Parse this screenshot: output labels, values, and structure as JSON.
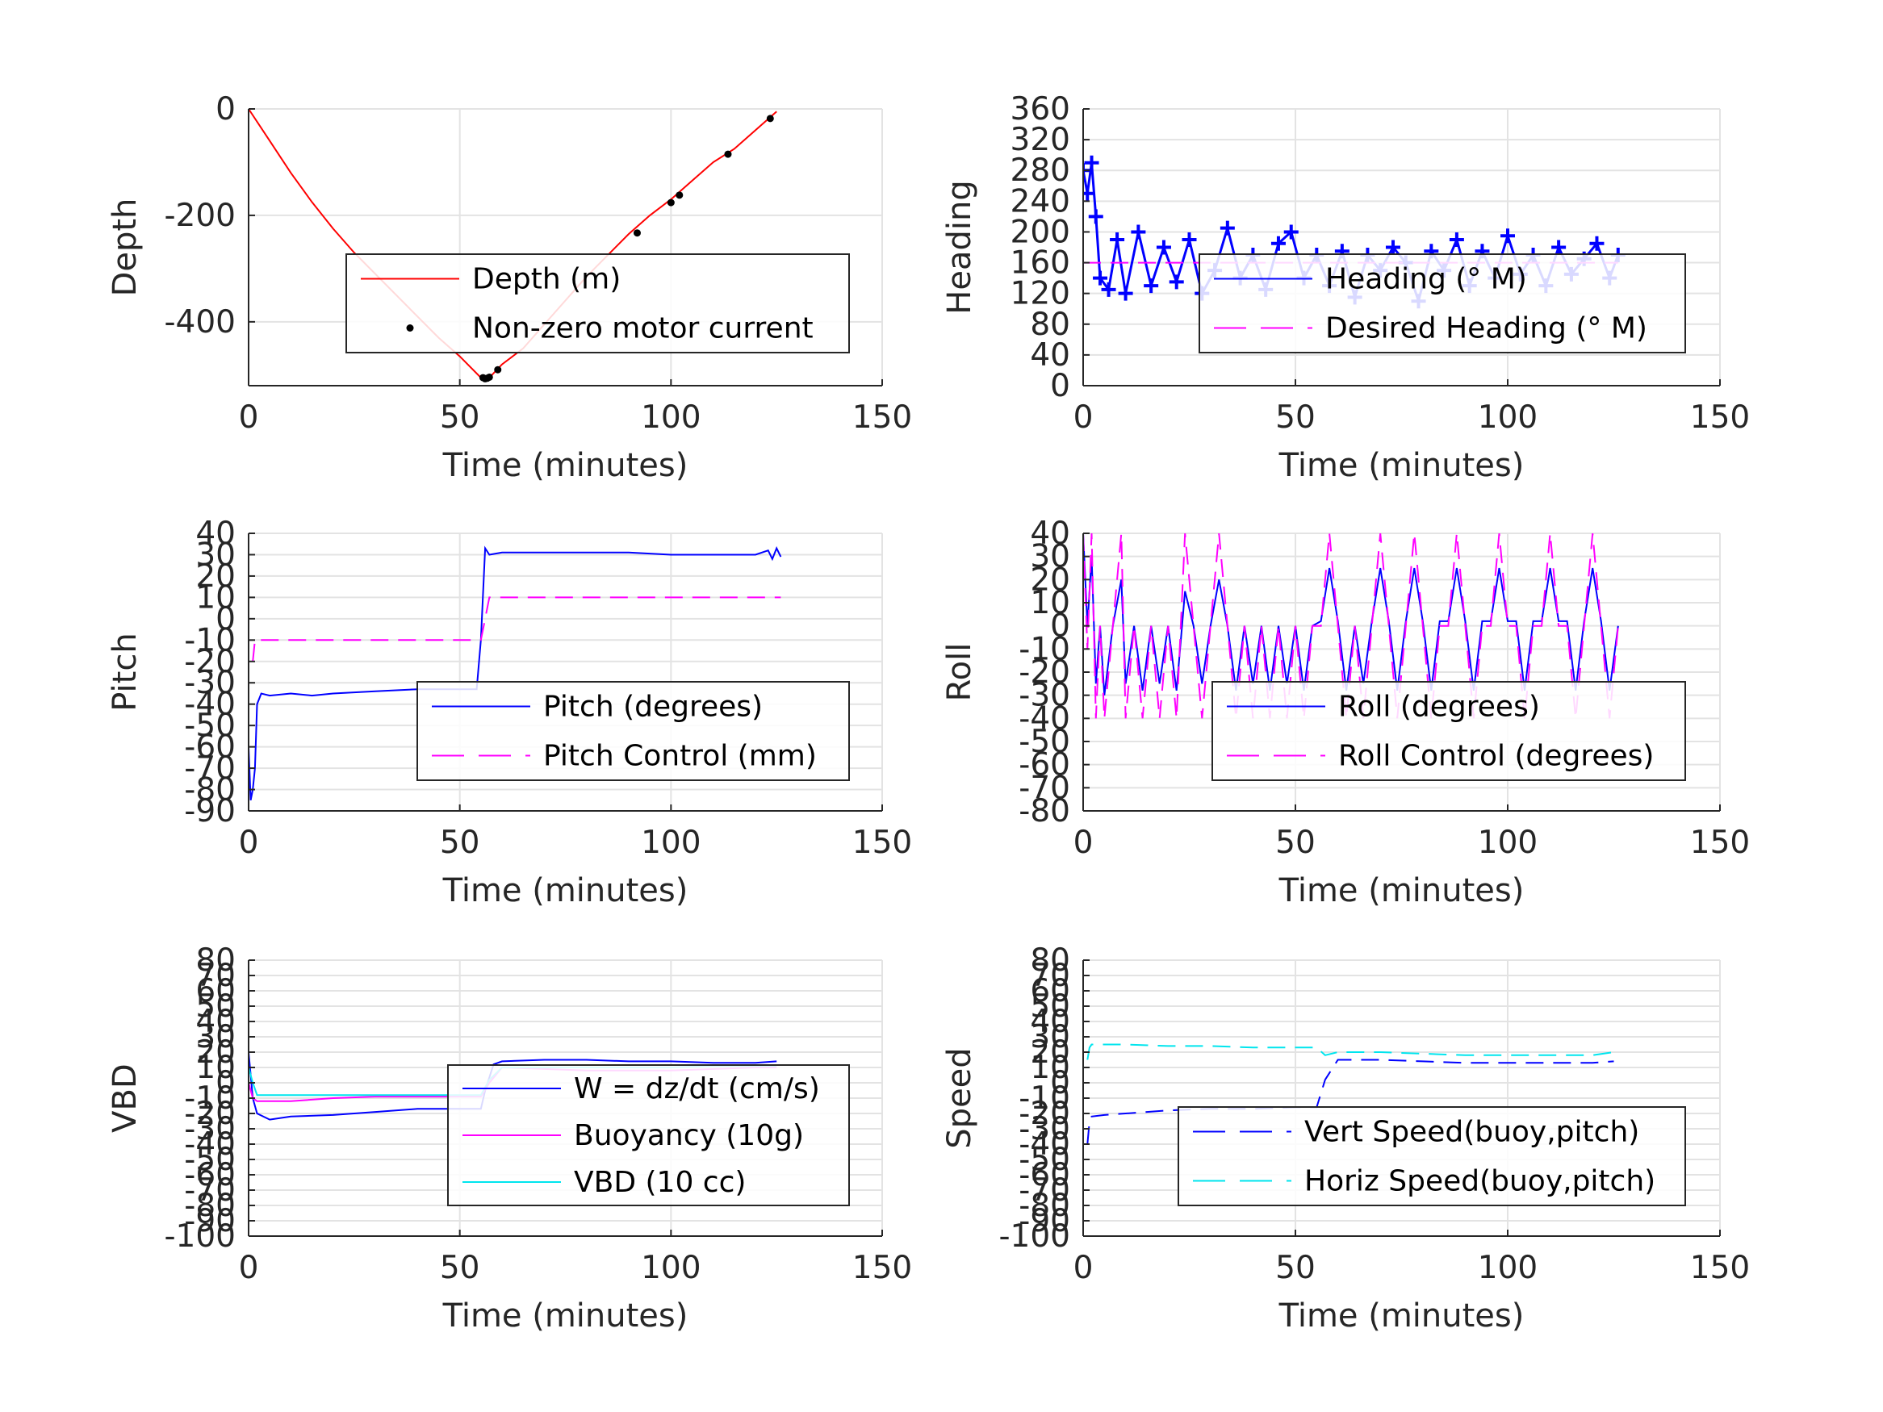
{
  "chart_data": [
    {
      "type": "line",
      "xlabel": "Time (minutes)",
      "ylabel": "Depth",
      "xlim": [
        0,
        150
      ],
      "ylim": [
        -520,
        0
      ],
      "xticks": [
        0,
        50,
        100,
        150
      ],
      "yticks": [
        0,
        -200,
        -400
      ],
      "legend_position": "center-right",
      "grid": true,
      "series": [
        {
          "name": "Depth (m)",
          "color": "#ff0000",
          "style": "solid",
          "x": [
            0,
            5,
            10,
            15,
            20,
            25,
            30,
            35,
            40,
            45,
            50,
            55,
            57,
            60,
            65,
            70,
            75,
            80,
            85,
            90,
            95,
            100,
            105,
            110,
            115,
            120,
            125
          ],
          "y": [
            0,
            -60,
            -120,
            -175,
            -225,
            -270,
            -310,
            -350,
            -390,
            -430,
            -465,
            -505,
            -505,
            -480,
            -450,
            -405,
            -360,
            -315,
            -275,
            -235,
            -200,
            -170,
            -135,
            -100,
            -75,
            -40,
            -5
          ]
        },
        {
          "name": "Non-zero motor current",
          "color": "#000000",
          "style": "marker",
          "x": [
            55.5,
            56,
            56.5,
            57,
            59,
            92,
            100,
            102,
            113.5,
            123.5
          ],
          "y": [
            -505,
            -507,
            -506,
            -504,
            -490,
            -233,
            -176,
            -162,
            -85,
            -18
          ]
        }
      ]
    },
    {
      "type": "line",
      "xlabel": "Time (minutes)",
      "ylabel": "Heading",
      "xlim": [
        0,
        150
      ],
      "ylim": [
        0,
        360
      ],
      "xticks": [
        0,
        50,
        100,
        150
      ],
      "yticks": [
        0,
        40,
        80,
        120,
        160,
        200,
        240,
        280,
        320,
        360
      ],
      "legend_position": "center-right",
      "grid": true,
      "series": [
        {
          "name": "Heading (° M)",
          "color": "#0000ff",
          "style": "solid-plus",
          "x": [
            0,
            1,
            2,
            3,
            4,
            6,
            8,
            10,
            13,
            16,
            19,
            22,
            25,
            28,
            31,
            34,
            37,
            40,
            43,
            46,
            49,
            52,
            55,
            58,
            61,
            64,
            67,
            70,
            73,
            76,
            79,
            82,
            85,
            88,
            91,
            94,
            97,
            100,
            103,
            106,
            109,
            112,
            115,
            118,
            121,
            124,
            126
          ],
          "y": [
            280,
            250,
            290,
            220,
            140,
            125,
            190,
            120,
            200,
            130,
            180,
            135,
            190,
            120,
            150,
            205,
            140,
            170,
            125,
            185,
            200,
            140,
            170,
            130,
            175,
            115,
            170,
            150,
            180,
            160,
            110,
            175,
            150,
            190,
            130,
            175,
            140,
            195,
            145,
            170,
            130,
            180,
            145,
            165,
            185,
            140,
            170
          ]
        },
        {
          "name": "Desired Heading (° M)",
          "color": "#ff00ff",
          "style": "dashed",
          "x": [
            0,
            126
          ],
          "y": [
            160,
            160
          ]
        }
      ]
    },
    {
      "type": "line",
      "xlabel": "Time (minutes)",
      "ylabel": "Pitch",
      "xlim": [
        0,
        150
      ],
      "ylim": [
        -90,
        40
      ],
      "xticks": [
        0,
        50,
        100,
        150
      ],
      "yticks": [
        40,
        30,
        20,
        10,
        0,
        -10,
        -20,
        -30,
        -40,
        -50,
        -60,
        -70,
        -80,
        -90
      ],
      "legend_position": "center-right",
      "grid": true,
      "series": [
        {
          "name": "Pitch (degrees)",
          "color": "#0000ff",
          "style": "solid",
          "x": [
            0,
            0.5,
            1,
            1.5,
            2,
            3,
            5,
            10,
            15,
            20,
            30,
            40,
            50,
            54,
            55,
            56,
            57,
            60,
            70,
            80,
            90,
            100,
            110,
            115,
            120,
            123,
            124,
            125,
            126
          ],
          "y": [
            -60,
            -85,
            -80,
            -70,
            -40,
            -35,
            -36,
            -35,
            -36,
            -35,
            -34,
            -33,
            -33,
            -33,
            -10,
            33,
            30,
            31,
            31,
            31,
            31,
            30,
            30,
            30,
            30,
            32,
            28,
            33,
            29
          ]
        },
        {
          "name": "Pitch Control (mm)",
          "color": "#ff00ff",
          "style": "dashed",
          "x": [
            1,
            1.5,
            2,
            55,
            56,
            57,
            126
          ],
          "y": [
            -20,
            -10,
            -10,
            -10,
            0,
            10,
            10
          ]
        }
      ]
    },
    {
      "type": "line",
      "xlabel": "Time (minutes)",
      "ylabel": "Roll",
      "xlim": [
        0,
        150
      ],
      "ylim": [
        -80,
        40
      ],
      "xticks": [
        0,
        50,
        100,
        150
      ],
      "yticks": [
        40,
        30,
        20,
        10,
        0,
        -10,
        -20,
        -30,
        -40,
        -50,
        -60,
        -70,
        -80
      ],
      "legend_position": "center-right",
      "grid": true,
      "series": [
        {
          "name": "Roll (degrees)",
          "color": "#0000ff",
          "style": "solid",
          "x": [
            0,
            1,
            2,
            3,
            4,
            5,
            7,
            9,
            10,
            12,
            14,
            16,
            18,
            20,
            22,
            24,
            26,
            28,
            30,
            32,
            34,
            36,
            38,
            40,
            42,
            44,
            46,
            48,
            50,
            52,
            54,
            56,
            58,
            60,
            62,
            64,
            66,
            68,
            70,
            72,
            74,
            76,
            78,
            80,
            82,
            84,
            86,
            88,
            90,
            92,
            94,
            96,
            98,
            100,
            102,
            104,
            106,
            108,
            110,
            112,
            114,
            116,
            118,
            120,
            122,
            124,
            126
          ],
          "y": [
            40,
            0,
            30,
            -25,
            0,
            -30,
            0,
            20,
            -25,
            0,
            -28,
            0,
            -25,
            0,
            -28,
            15,
            0,
            -25,
            0,
            20,
            0,
            -28,
            0,
            -25,
            0,
            -28,
            0,
            -25,
            0,
            -28,
            0,
            2,
            25,
            2,
            -28,
            0,
            -25,
            2,
            25,
            2,
            -28,
            2,
            25,
            2,
            -28,
            2,
            2,
            25,
            2,
            -28,
            2,
            2,
            25,
            2,
            2,
            -28,
            2,
            2,
            25,
            2,
            2,
            -28,
            2,
            25,
            2,
            -28,
            0
          ]
        },
        {
          "name": "Roll Control (degrees)",
          "color": "#ff00ff",
          "style": "dashed",
          "x": [
            0,
            1,
            2,
            3,
            4,
            5,
            7,
            9,
            10,
            12,
            14,
            16,
            18,
            20,
            22,
            24,
            26,
            28,
            30,
            32,
            34,
            36,
            38,
            40,
            42,
            44,
            46,
            48,
            50,
            52,
            54,
            56,
            58,
            60,
            62,
            64,
            66,
            68,
            70,
            72,
            74,
            76,
            78,
            80,
            82,
            84,
            86,
            88,
            90,
            92,
            94,
            96,
            98,
            100,
            102,
            104,
            106,
            108,
            110,
            112,
            114,
            116,
            118,
            120,
            122,
            124,
            126
          ],
          "y": [
            40,
            -10,
            40,
            -40,
            0,
            -40,
            0,
            40,
            -40,
            0,
            -40,
            0,
            -40,
            0,
            -40,
            40,
            0,
            -40,
            0,
            40,
            0,
            -40,
            0,
            -40,
            0,
            -40,
            0,
            -40,
            0,
            -40,
            0,
            0,
            40,
            0,
            -40,
            0,
            -40,
            0,
            40,
            0,
            -40,
            0,
            40,
            0,
            -40,
            0,
            0,
            40,
            0,
            -40,
            0,
            0,
            40,
            0,
            0,
            -40,
            0,
            0,
            40,
            0,
            0,
            -40,
            0,
            40,
            0,
            -40,
            0
          ]
        }
      ]
    },
    {
      "type": "line",
      "xlabel": "Time (minutes)",
      "ylabel": "VBD",
      "xlim": [
        0,
        150
      ],
      "ylim": [
        -100,
        80
      ],
      "xticks": [
        0,
        50,
        100,
        150
      ],
      "yticks": [
        80,
        70,
        60,
        50,
        40,
        30,
        20,
        10,
        0,
        -10,
        -20,
        -30,
        -40,
        -50,
        -60,
        -70,
        -80,
        -90,
        -100
      ],
      "legend_position": "center-right",
      "grid": true,
      "series": [
        {
          "name": "W = dz/dt (cm/s)",
          "color": "#0000ff",
          "style": "solid",
          "x": [
            0,
            1,
            2,
            5,
            10,
            20,
            30,
            40,
            50,
            55,
            56,
            58,
            60,
            70,
            80,
            90,
            100,
            110,
            120,
            125
          ],
          "y": [
            20,
            -10,
            -20,
            -24,
            -22,
            -21,
            -19,
            -17,
            -17,
            -17,
            -5,
            12,
            14,
            15,
            15,
            14,
            14,
            13,
            13,
            14
          ]
        },
        {
          "name": "Buoyancy (10g)",
          "color": "#ff00ff",
          "style": "solid",
          "x": [
            0,
            1,
            2,
            10,
            20,
            30,
            40,
            50,
            55,
            57,
            60,
            70,
            80,
            90,
            100,
            110,
            120,
            125
          ],
          "y": [
            0,
            -10,
            -12,
            -12,
            -10,
            -9,
            -9,
            -9,
            -9,
            0,
            10,
            9,
            8,
            8,
            8,
            9,
            10,
            10
          ]
        },
        {
          "name": "VBD (10 cc)",
          "color": "#00e5ee",
          "style": "solid",
          "x": [
            0,
            1,
            2,
            10,
            20,
            30,
            40,
            50,
            55,
            57,
            60,
            70,
            80,
            90,
            100,
            110,
            120,
            125
          ],
          "y": [
            10,
            0,
            -8,
            -8,
            -8,
            -8,
            -8,
            -8,
            -8,
            2,
            10,
            10,
            10,
            10,
            10,
            11,
            11,
            11
          ]
        }
      ]
    },
    {
      "type": "line",
      "xlabel": "Time (minutes)",
      "ylabel": "Speed",
      "xlim": [
        0,
        150
      ],
      "ylim": [
        -100,
        80
      ],
      "xticks": [
        0,
        50,
        100,
        150
      ],
      "yticks": [
        80,
        70,
        60,
        50,
        40,
        30,
        20,
        10,
        0,
        -10,
        -20,
        -30,
        -40,
        -50,
        -60,
        -70,
        -80,
        -90,
        -100
      ],
      "legend_position": "center-right",
      "grid": true,
      "series": [
        {
          "name": "Vert Speed(buoy,pitch)",
          "color": "#0000ff",
          "style": "dashed",
          "x": [
            1,
            1.5,
            2,
            5,
            10,
            20,
            30,
            40,
            50,
            55,
            57,
            60,
            70,
            80,
            90,
            100,
            110,
            120,
            125
          ],
          "y": [
            -40,
            -25,
            -22,
            -21,
            -20,
            -18,
            -17,
            -17,
            -16,
            -16,
            2,
            15,
            15,
            14,
            13,
            13,
            13,
            13,
            14
          ]
        },
        {
          "name": "Horiz Speed(buoy,pitch)",
          "color": "#00e5ee",
          "style": "dashed",
          "x": [
            1,
            1.5,
            2,
            10,
            20,
            30,
            40,
            50,
            55,
            57,
            60,
            70,
            80,
            90,
            100,
            110,
            120,
            125
          ],
          "y": [
            15,
            23,
            25,
            25,
            24,
            24,
            23,
            23,
            23,
            18,
            20,
            20,
            19,
            18,
            18,
            18,
            18,
            20
          ]
        }
      ]
    }
  ]
}
